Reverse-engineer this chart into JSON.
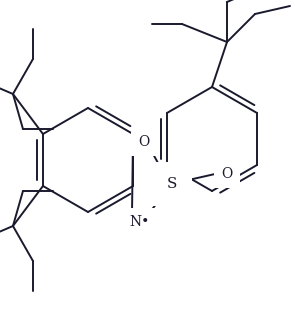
{
  "background_color": "#ffffff",
  "line_color": "#1a1a2e",
  "line_width": 1.4,
  "figsize": [
    2.95,
    3.17
  ],
  "dpi": 100,
  "xlim": [
    0,
    295
  ],
  "ylim": [
    0,
    317
  ]
}
